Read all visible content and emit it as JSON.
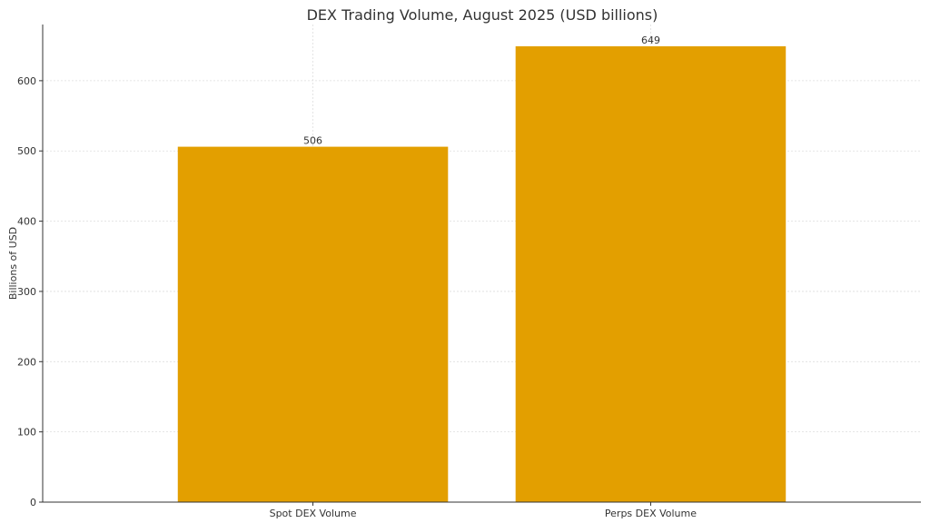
{
  "chart_data": {
    "type": "bar",
    "title": "DEX Trading Volume, August 2025 (USD billions)",
    "xlabel": "",
    "ylabel": "Billions of USD",
    "categories": [
      "Spot DEX Volume",
      "Perps DEX Volume"
    ],
    "values": [
      506,
      649
    ],
    "data_labels": [
      "506",
      "649"
    ],
    "ylim": [
      0,
      680
    ],
    "yticks": [
      0,
      100,
      200,
      300,
      400,
      500,
      600
    ],
    "grid": true,
    "bar_color": "#E39F00"
  }
}
